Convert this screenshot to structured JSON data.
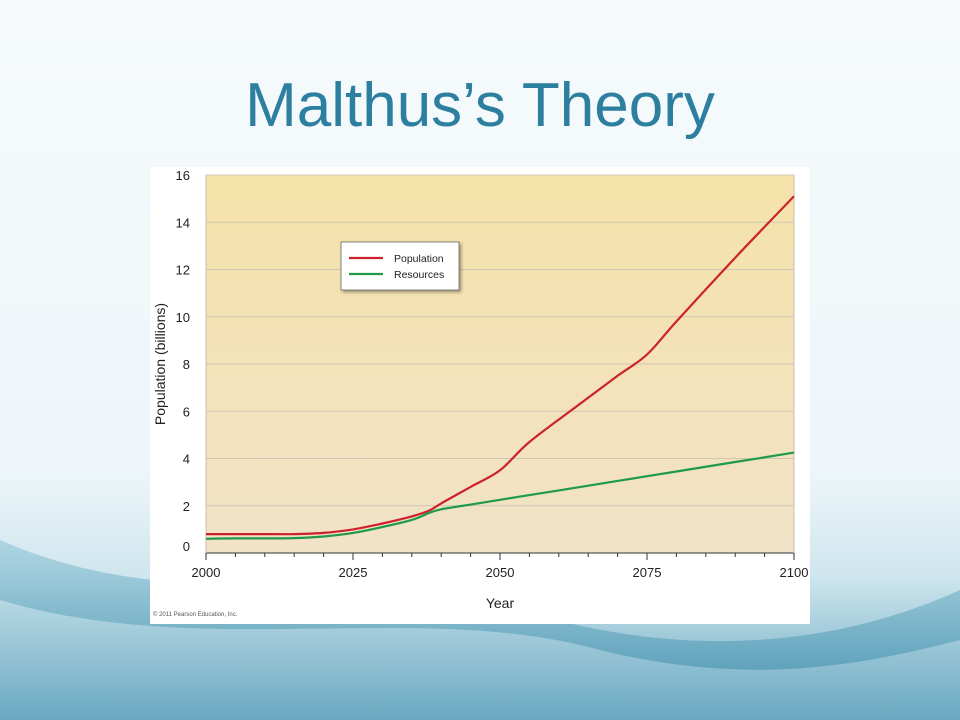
{
  "slide": {
    "title": "Malthus’s Theory"
  },
  "colors": {
    "title": "#2d7fa0",
    "population": "#cc2229",
    "resources": "#1e9a4a",
    "plot_bg_top": "#f5e2a9",
    "plot_bg_bottom": "#f2e2c8"
  },
  "copyright": "© 2011 Pearson Education, Inc.",
  "chart_data": {
    "type": "line",
    "title": "",
    "xlabel": "Year",
    "ylabel": "Population (billions)",
    "xlim": [
      2000,
      2100
    ],
    "ylim": [
      0,
      16
    ],
    "xticks": [
      2000,
      2025,
      2050,
      2075,
      2100
    ],
    "yticks": [
      0,
      2,
      4,
      6,
      8,
      10,
      12,
      14,
      16
    ],
    "grid": "horizontal",
    "legend_position": "top-left",
    "series": [
      {
        "name": "Population",
        "color": "#cc2229",
        "x": [
          2000,
          2005,
          2010,
          2015,
          2020,
          2025,
          2030,
          2035,
          2038,
          2040,
          2045,
          2050,
          2055,
          2063,
          2070,
          2075,
          2080,
          2090,
          2100
        ],
        "y": [
          0.8,
          0.8,
          0.8,
          0.8,
          0.85,
          1.0,
          1.25,
          1.55,
          1.8,
          2.1,
          2.8,
          3.5,
          4.7,
          6.2,
          7.5,
          8.4,
          9.8,
          12.5,
          15.1
        ]
      },
      {
        "name": "Resources",
        "color": "#1e9a4a",
        "x": [
          2000,
          2005,
          2010,
          2015,
          2020,
          2025,
          2030,
          2035,
          2038,
          2040,
          2045,
          2050,
          2060,
          2070,
          2080,
          2090,
          2100
        ],
        "y": [
          0.6,
          0.62,
          0.62,
          0.63,
          0.7,
          0.85,
          1.1,
          1.4,
          1.7,
          1.85,
          2.05,
          2.25,
          2.65,
          3.05,
          3.45,
          3.85,
          4.25
        ]
      }
    ]
  }
}
